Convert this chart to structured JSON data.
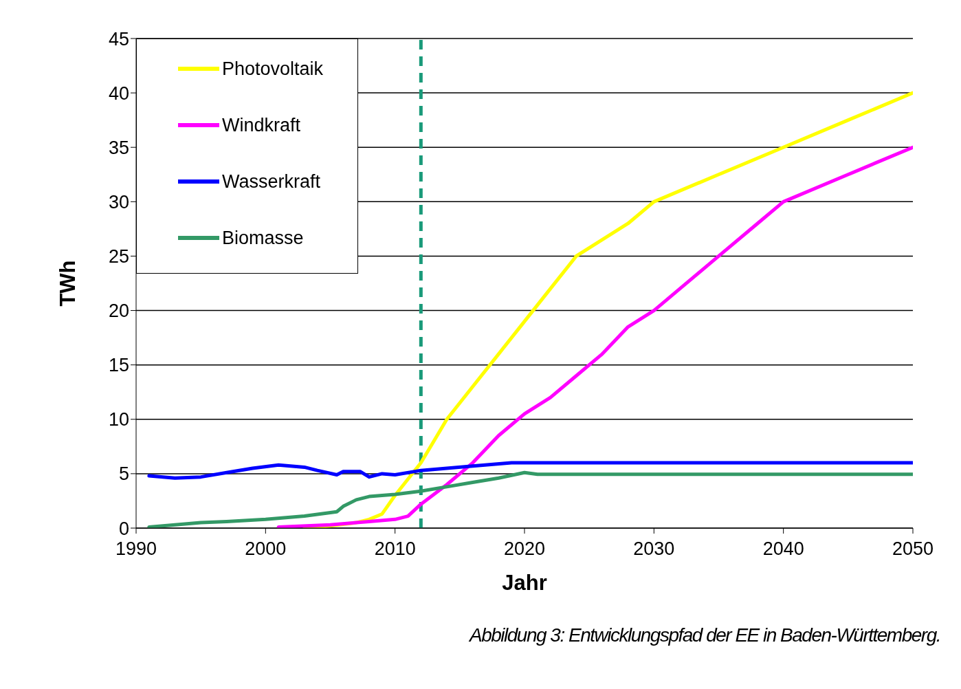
{
  "chart_data": {
    "type": "line",
    "xlabel": "Jahr",
    "ylabel": "TWh",
    "xlim": [
      1990,
      2050
    ],
    "xticks": [
      1990,
      2000,
      2010,
      2020,
      2030,
      2040,
      2050
    ],
    "ylim": [
      0,
      45
    ],
    "yticks": [
      0,
      5,
      10,
      15,
      20,
      25,
      30,
      35,
      40,
      45
    ],
    "grid": "y",
    "legend": "top left",
    "marker": "none",
    "line_style": "solid",
    "series": [
      {
        "name": "Photovoltaik",
        "color": "#ffff00",
        "x": [
          2003,
          2005,
          2007,
          2008,
          2009,
          2010,
          2011,
          2012,
          2013,
          2014,
          2016,
          2018,
          2020,
          2022,
          2024,
          2026,
          2028,
          2030,
          2035,
          2040,
          2045,
          2050
        ],
        "values": [
          0,
          0.2,
          0.5,
          0.8,
          1.3,
          3,
          4.5,
          6,
          8,
          10,
          13,
          16,
          19,
          22,
          25,
          26.5,
          28,
          30,
          32.5,
          35,
          37.5,
          40
        ]
      },
      {
        "name": "Windkraft",
        "color": "#ff00ff",
        "x": [
          2001,
          2005,
          2007,
          2008,
          2010,
          2011,
          2012,
          2014,
          2016,
          2018,
          2020,
          2022,
          2024,
          2026,
          2028,
          2030,
          2032,
          2035,
          2038,
          2040,
          2045,
          2050
        ],
        "values": [
          0.1,
          0.3,
          0.5,
          0.6,
          0.8,
          1.1,
          2.2,
          4,
          6,
          8.5,
          10.5,
          12,
          14,
          16,
          18.5,
          20,
          22,
          25,
          28,
          30,
          32.5,
          35
        ]
      },
      {
        "name": "Wasserkraft",
        "color": "#0000ff",
        "x": [
          1991,
          1993,
          1995,
          1997,
          1999,
          2001,
          2003,
          2004,
          2005.5,
          2006,
          2007.3,
          2008,
          2009,
          2010,
          2012,
          2014,
          2016,
          2019,
          2050
        ],
        "values": [
          4.8,
          4.6,
          4.7,
          5.1,
          5.5,
          5.8,
          5.6,
          5.3,
          4.9,
          5.2,
          5.2,
          4.7,
          5,
          4.9,
          5.3,
          5.5,
          5.7,
          6,
          6
        ]
      },
      {
        "name": "Biomasse",
        "color": "#339966",
        "x": [
          1991,
          1993,
          1995,
          1997,
          2000,
          2003,
          2005.5,
          2006,
          2007,
          2008,
          2010,
          2012,
          2014,
          2016,
          2018,
          2020,
          2021,
          2050
        ],
        "values": [
          0.1,
          0.3,
          0.5,
          0.6,
          0.8,
          1.1,
          1.5,
          2,
          2.6,
          2.9,
          3.1,
          3.4,
          3.8,
          4.2,
          4.6,
          5.1,
          4.95,
          4.95
        ]
      }
    ],
    "ref_lines": [
      {
        "axis": "x",
        "value": 2012,
        "color": "#1a9a7a",
        "line_style": "dashed"
      }
    ],
    "annotations": [
      "Abbildung 3:  Entwicklungspfad der EE in Baden-Württemberg."
    ]
  }
}
